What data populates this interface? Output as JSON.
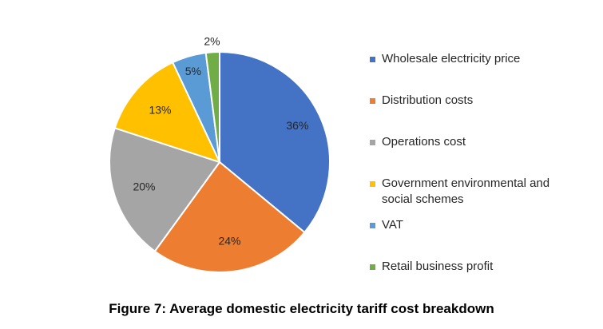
{
  "chart_data": {
    "type": "pie",
    "categories": [
      "Wholesale electricity price",
      "Distribution costs",
      "Operations cost",
      "Government environmental and social schemes",
      "VAT",
      "Retail business profit"
    ],
    "values": [
      36,
      24,
      20,
      13,
      5,
      2
    ],
    "value_labels": [
      "36%",
      "24%",
      "20%",
      "13%",
      "5%",
      "2%"
    ],
    "colors": [
      "#4472C4",
      "#ED7D31",
      "#A5A5A5",
      "#FFC000",
      "#5B9BD5",
      "#70AD47"
    ],
    "legend_position": "right",
    "start_angle": "12 o'clock",
    "direction": "clockwise"
  },
  "caption": "Figure 7: Average domestic electricity tariff cost breakdown"
}
